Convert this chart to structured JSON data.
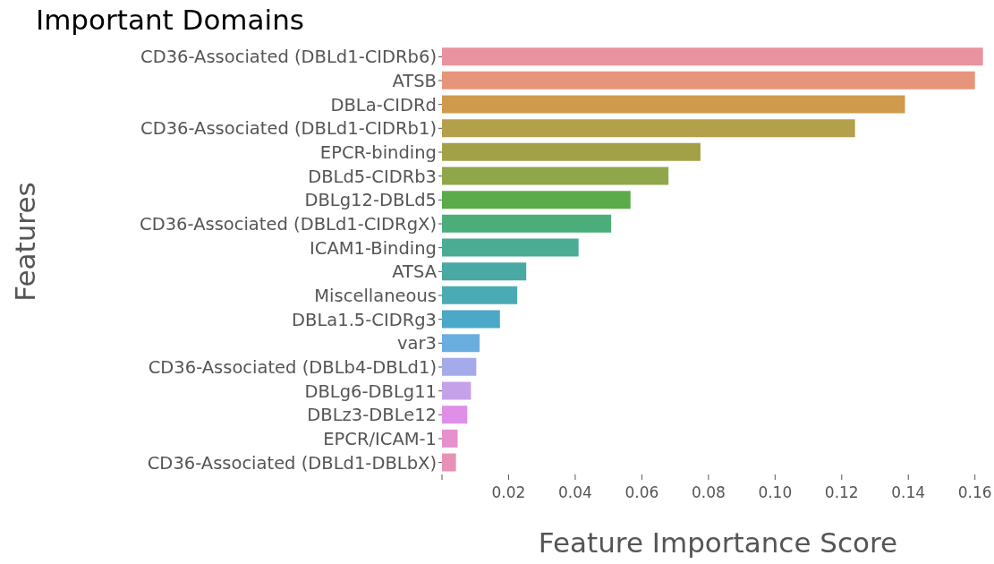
{
  "chart_data": {
    "type": "bar",
    "orientation": "horizontal",
    "title": "Important Domains",
    "xlabel": "Feature Importance Score",
    "ylabel": "Features",
    "categories": [
      "CD36-Associated (DBLd1-CIDRb6)",
      "ATSB",
      "DBLa-CIDRd",
      "CD36-Associated (DBLd1-CIDRb1)",
      "EPCR-binding",
      "DBLd5-CIDRb3",
      "DBLg12-DBLd5",
      "CD36-Associated (DBLd1-CIDRgX)",
      "ICAM1-Binding",
      "ATSA",
      "Miscellaneous",
      "DBLa1.5-CIDRg3",
      "var3",
      "CD36-Associated (DBLb4-DBLd1)",
      "DBLg6-DBLg11",
      "DBLz3-DBLe12",
      "EPCR/ICAM-1",
      "CD36-Associated (DBLd1-DBLbX)"
    ],
    "values": [
      0.1624,
      0.16,
      0.139,
      0.124,
      0.0776,
      0.068,
      0.0566,
      0.0508,
      0.041,
      0.0253,
      0.0226,
      0.0174,
      0.0113,
      0.0103,
      0.0087,
      0.0076,
      0.0047,
      0.0042
    ],
    "colors": [
      "#e8939f",
      "#e6957a",
      "#cf9a4c",
      "#b4a04a",
      "#a3a147",
      "#8fa64b",
      "#5bab4b",
      "#4bae7a",
      "#4aac92",
      "#4aa9a2",
      "#4babb4",
      "#4ba8c8",
      "#6aaee0",
      "#a5aaea",
      "#c5a1ea",
      "#e08fe8",
      "#e690cc",
      "#e691b5"
    ],
    "xlim": [
      0,
      0.1625
    ],
    "xticks": [
      {
        "value": 0,
        "label": null
      },
      {
        "value": 0.02,
        "label": "0.02"
      },
      {
        "value": 0.04,
        "label": "0.04"
      },
      {
        "value": 0.06,
        "label": "0.06"
      },
      {
        "value": 0.08,
        "label": "0.08"
      },
      {
        "value": 0.1,
        "label": "0.10"
      },
      {
        "value": 0.12,
        "label": "0.12"
      },
      {
        "value": 0.14,
        "label": "0.14"
      },
      {
        "value": 0.16,
        "label": "0.16"
      }
    ],
    "grid": false,
    "legend": false
  }
}
